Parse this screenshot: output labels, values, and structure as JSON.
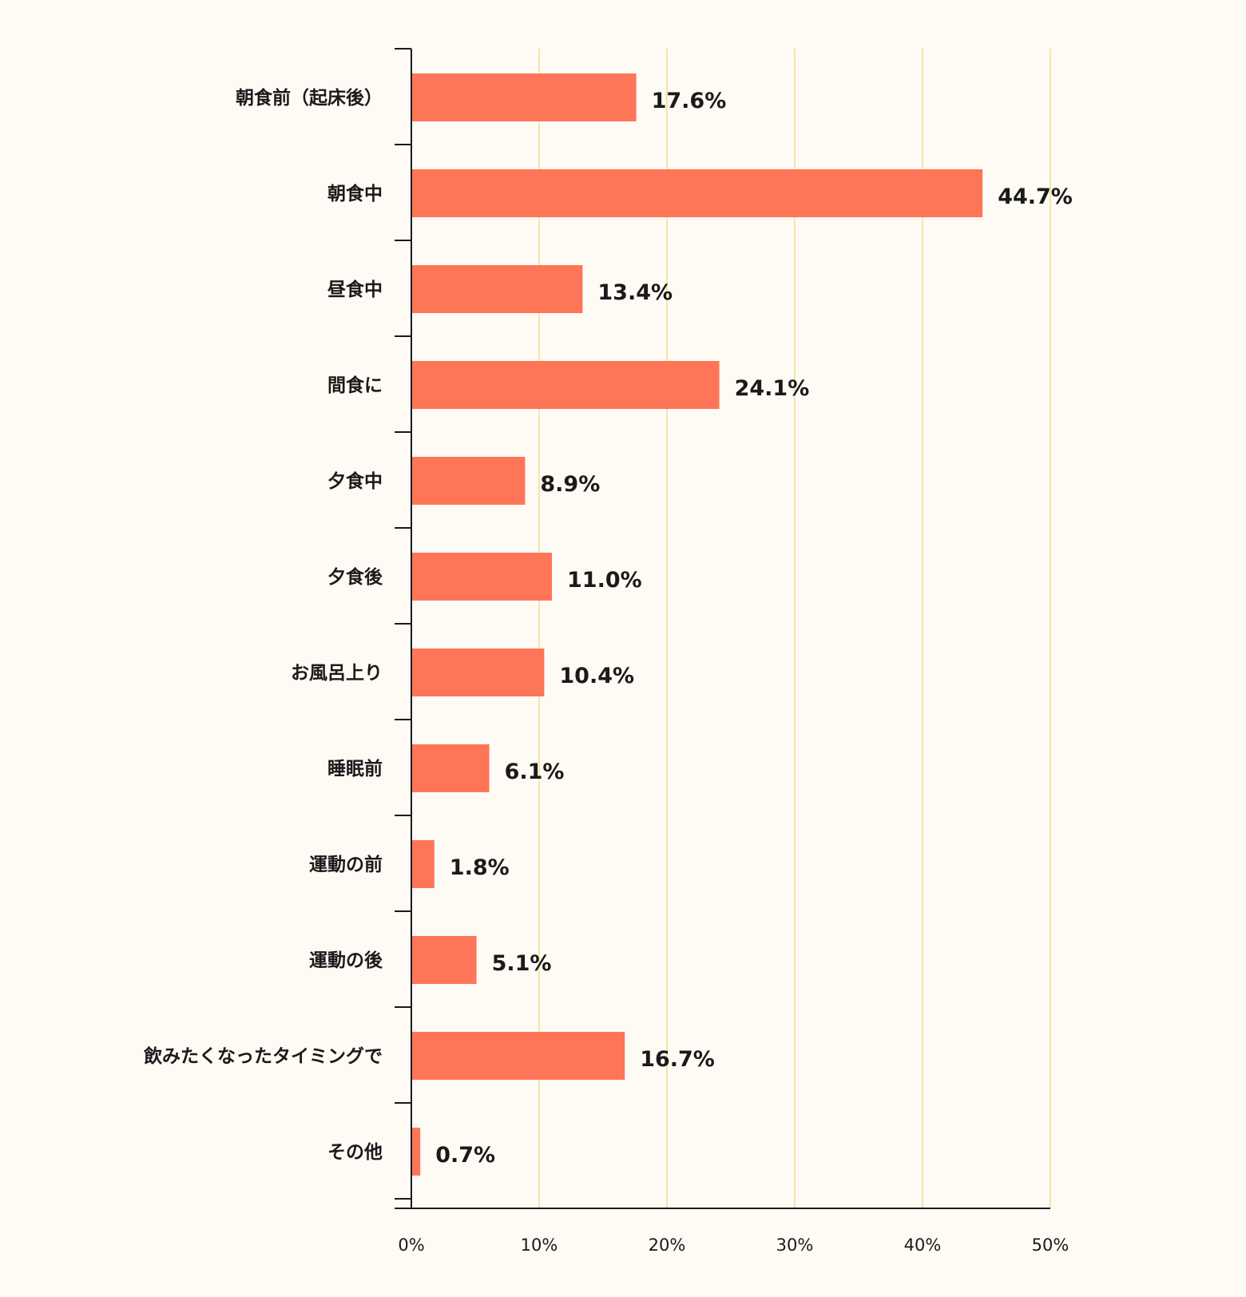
{
  "chart_data": {
    "type": "bar",
    "orientation": "horizontal",
    "categories": [
      "朝食前（起床後）",
      "朝食中",
      "昼食中",
      "間食に",
      "夕食中",
      "夕食後",
      "お風呂上り",
      "睡眠前",
      "運動の前",
      "運動の後",
      "飲みたくなったタイミングで",
      "その他"
    ],
    "values": [
      17.6,
      44.7,
      13.4,
      24.1,
      8.9,
      11.0,
      10.4,
      6.1,
      1.8,
      5.1,
      16.7,
      0.7
    ],
    "value_labels": [
      "17.6%",
      "44.7%",
      "13.4%",
      "24.1%",
      "8.9%",
      "11.0%",
      "10.4%",
      "6.1%",
      "1.8%",
      "5.1%",
      "16.7%",
      "0.7%"
    ],
    "x_ticks": [
      "0%",
      "10%",
      "20%",
      "30%",
      "40%",
      "50%"
    ],
    "xlim": [
      0,
      50
    ],
    "grid": true,
    "colors": {
      "bar": "#FF7558",
      "grid": "#F8E4A8",
      "axis": "#1a1a1a",
      "background": "#FEFAF4"
    }
  }
}
